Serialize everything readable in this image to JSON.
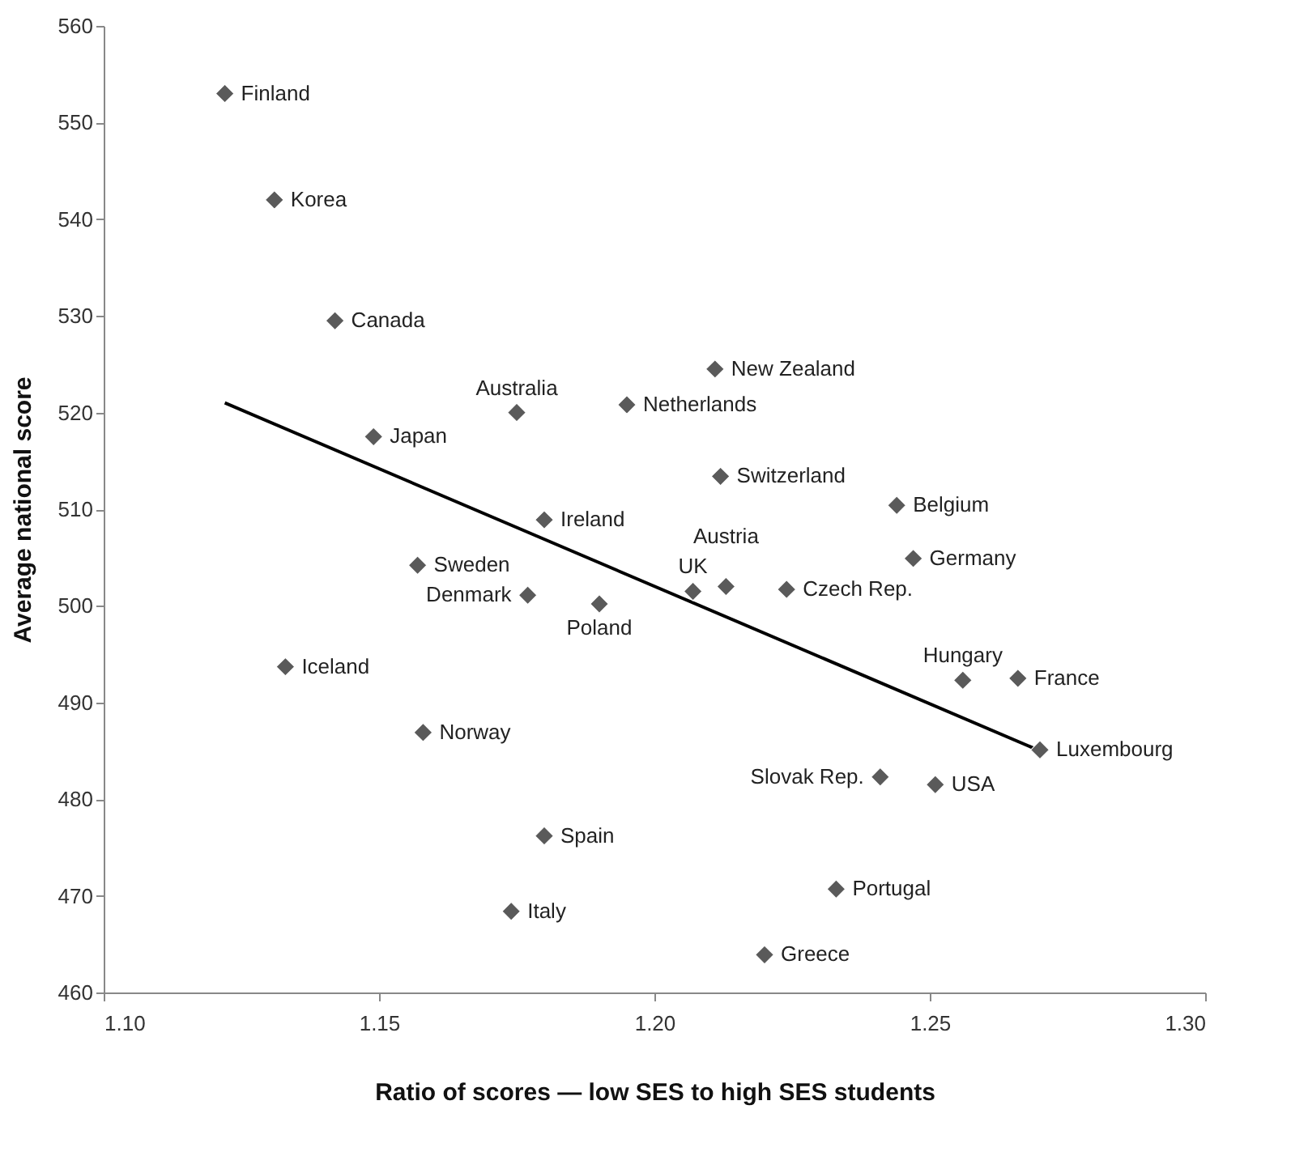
{
  "chart_data": {
    "type": "scatter",
    "xlabel": "Ratio of scores — low SES to high SES students",
    "ylabel": "Average national score",
    "xlim": [
      1.1,
      1.3
    ],
    "xticks": [
      {
        "value": 1.1,
        "label": "1.10"
      },
      {
        "value": 1.15,
        "label": "1.15"
      },
      {
        "value": 1.2,
        "label": "1.20"
      },
      {
        "value": 1.25,
        "label": "1.25"
      },
      {
        "value": 1.3,
        "label": "1.30"
      }
    ],
    "ylim": [
      460,
      560
    ],
    "yticks": [
      460,
      470,
      480,
      490,
      500,
      510,
      520,
      530,
      540,
      550,
      560
    ],
    "grid": false,
    "marker": "diamond",
    "series": [
      {
        "color": "#5a5a5a",
        "x": [
          1.122,
          1.131,
          1.142,
          1.149,
          1.175,
          1.195,
          1.211,
          1.212,
          1.244,
          1.18,
          1.157,
          1.247,
          1.177,
          1.19,
          1.207,
          1.213,
          1.224,
          1.133,
          1.256,
          1.266,
          1.158,
          1.27,
          1.241,
          1.251,
          1.18,
          1.233,
          1.174,
          1.22
        ],
        "values": [
          553,
          542,
          529.5,
          517.5,
          520,
          520.8,
          524.5,
          513.4,
          510.4,
          508.9,
          504.2,
          504.9,
          501.1,
          500.2,
          501.5,
          502,
          501.7,
          493.7,
          492.3,
          492.5,
          486.9,
          485.1,
          482.3,
          481.5,
          476.2,
          470.7,
          468.4,
          463.9
        ]
      },
      {
        "type": "line",
        "marker": "none",
        "color": "#000000",
        "x": [
          1.122,
          1.27
        ],
        "values": [
          521,
          485
        ]
      }
    ],
    "annotations": [
      {
        "text": "Finland",
        "x": 1.122,
        "y": 553
      },
      {
        "text": "Korea",
        "x": 1.131,
        "y": 542
      },
      {
        "text": "Canada",
        "x": 1.142,
        "y": 529.5
      },
      {
        "text": "Japan",
        "x": 1.149,
        "y": 517.5
      },
      {
        "text": "Australia",
        "x": 1.175,
        "y": 520
      },
      {
        "text": "Netherlands",
        "x": 1.195,
        "y": 520.8
      },
      {
        "text": "New Zealand",
        "x": 1.211,
        "y": 524.5
      },
      {
        "text": "Switzerland",
        "x": 1.212,
        "y": 513.4
      },
      {
        "text": "Belgium",
        "x": 1.244,
        "y": 510.4
      },
      {
        "text": "Ireland",
        "x": 1.18,
        "y": 508.9
      },
      {
        "text": "Sweden",
        "x": 1.157,
        "y": 504.2
      },
      {
        "text": "Germany",
        "x": 1.247,
        "y": 504.9
      },
      {
        "text": "Denmark",
        "x": 1.177,
        "y": 501.1
      },
      {
        "text": "Poland",
        "x": 1.19,
        "y": 500.2
      },
      {
        "text": "UK",
        "x": 1.207,
        "y": 501.5
      },
      {
        "text": "Austria",
        "x": 1.213,
        "y": 502
      },
      {
        "text": "Czech Rep.",
        "x": 1.224,
        "y": 501.7
      },
      {
        "text": "Iceland",
        "x": 1.133,
        "y": 493.7
      },
      {
        "text": "Hungary",
        "x": 1.256,
        "y": 492.3
      },
      {
        "text": "France",
        "x": 1.266,
        "y": 492.5
      },
      {
        "text": "Norway",
        "x": 1.158,
        "y": 486.9
      },
      {
        "text": "Luxembourg",
        "x": 1.27,
        "y": 485.1
      },
      {
        "text": "Slovak Rep.",
        "x": 1.241,
        "y": 482.3
      },
      {
        "text": "USA",
        "x": 1.251,
        "y": 481.5
      },
      {
        "text": "Spain",
        "x": 1.18,
        "y": 476.2
      },
      {
        "text": "Portugal",
        "x": 1.233,
        "y": 470.7
      },
      {
        "text": "Italy",
        "x": 1.174,
        "y": 468.4
      },
      {
        "text": "Greece",
        "x": 1.22,
        "y": 463.9
      }
    ]
  }
}
